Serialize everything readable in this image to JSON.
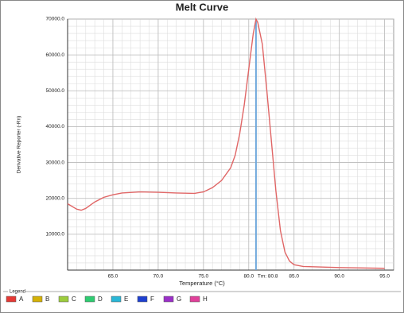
{
  "chart_data": {
    "type": "line",
    "title": "Melt Curve",
    "xlabel": "Temperature (°C)",
    "ylabel": "Derivative Reporter (-Rn)",
    "x": [
      60,
      61,
      61.5,
      62,
      63,
      64,
      65,
      66,
      68,
      70,
      72,
      74,
      75,
      76,
      77,
      78,
      78.5,
      79,
      79.5,
      80,
      80.5,
      80.8,
      81,
      81.5,
      82,
      82.5,
      83,
      83.5,
      84,
      84.5,
      85,
      86,
      90,
      95
    ],
    "series": [
      {
        "color": "#e06666",
        "values": [
          18500,
          17000,
          16700,
          17200,
          19000,
          20300,
          21000,
          21500,
          21800,
          21700,
          21500,
          21400,
          21800,
          23000,
          25000,
          28500,
          32000,
          38000,
          46000,
          56000,
          66000,
          70000,
          69000,
          63000,
          50000,
          36000,
          22000,
          11000,
          5000,
          2500,
          1500,
          1000,
          700,
          500
        ]
      }
    ],
    "xlim": [
      60,
      96
    ],
    "ylim": [
      0,
      70000
    ],
    "xticks": [
      {
        "value": 65,
        "label": "65.0"
      },
      {
        "value": 70,
        "label": "70.0"
      },
      {
        "value": 75,
        "label": "75.0"
      },
      {
        "value": 80,
        "label": "80.0"
      },
      {
        "value": 85,
        "label": "85.0"
      },
      {
        "value": 90,
        "label": "90.0"
      },
      {
        "value": 95,
        "label": "95.0"
      }
    ],
    "yticks": [
      {
        "value": 10000,
        "label": "10000.0"
      },
      {
        "value": 20000,
        "label": "20000.0"
      },
      {
        "value": 30000,
        "label": "30000.0"
      },
      {
        "value": 40000,
        "label": "40000.0"
      },
      {
        "value": 50000,
        "label": "50000.0"
      },
      {
        "value": 60000,
        "label": "60000.0"
      },
      {
        "value": 70000,
        "label": "70000.0"
      }
    ],
    "grid": true,
    "tm_line": {
      "value": 80.8,
      "label": "Tm: 80.8",
      "color": "#6fa8dc"
    },
    "legend": {
      "title": "Legend",
      "entries": [
        {
          "name": "A",
          "color": "#e53935"
        },
        {
          "name": "B",
          "color": "#d4b106"
        },
        {
          "name": "C",
          "color": "#9ccc3c"
        },
        {
          "name": "D",
          "color": "#2ecc71"
        },
        {
          "name": "E",
          "color": "#29b6d6"
        },
        {
          "name": "F",
          "color": "#1e40d0"
        },
        {
          "name": "G",
          "color": "#9b30c8"
        },
        {
          "name": "H",
          "color": "#e0409a"
        }
      ]
    }
  }
}
